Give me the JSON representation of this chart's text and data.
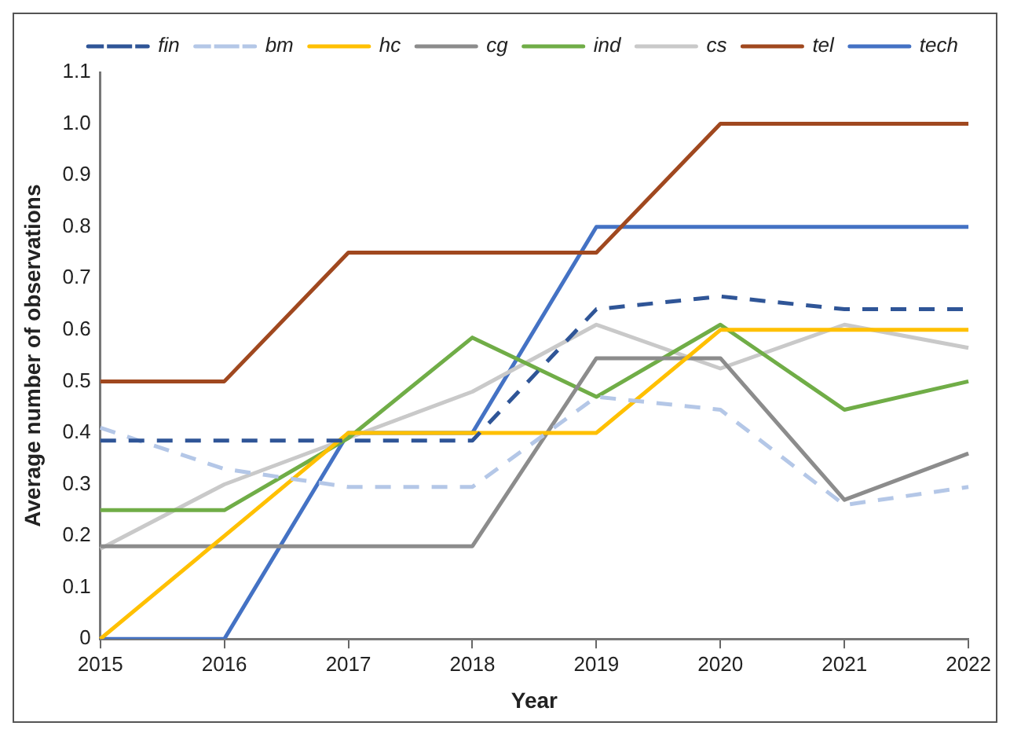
{
  "chart_data": {
    "type": "line",
    "xlabel": "Year",
    "ylabel": "Average number of observations",
    "categories": [
      "2015",
      "2016",
      "2017",
      "2018",
      "2019",
      "2020",
      "2021",
      "2022"
    ],
    "ylim": [
      0,
      1.1
    ],
    "yticks": [
      0,
      0.1,
      0.2,
      0.3,
      0.4,
      0.5,
      0.6,
      0.7,
      0.8,
      0.9,
      {
        "value": 1,
        "label": "1.0"
      },
      1.1
    ],
    "grid": false,
    "legend": "top right",
    "marker": "none",
    "series": [
      {
        "name": "fin",
        "color": "#2f5597",
        "line_style": "dashed",
        "values": [
          0.385,
          0.385,
          0.385,
          0.385,
          0.64,
          0.665,
          0.64,
          0.64
        ]
      },
      {
        "name": "bm",
        "color": "#b4c7e7",
        "line_style": "dashed",
        "values": [
          0.41,
          0.33,
          0.295,
          0.295,
          0.47,
          0.445,
          0.26,
          0.295
        ]
      },
      {
        "name": "hc",
        "color": "#ffc000",
        "line_style": "solid",
        "values": [
          0,
          0.2,
          0.4,
          0.4,
          0.4,
          0.6,
          0.6,
          0.6
        ]
      },
      {
        "name": "cg",
        "color": "#8c8c8c",
        "line_style": "solid",
        "values": [
          0.18,
          0.18,
          0.18,
          0.18,
          0.545,
          0.545,
          0.27,
          0.36
        ]
      },
      {
        "name": "ind",
        "color": "#70ad47",
        "line_style": "solid",
        "values": [
          0.25,
          0.25,
          0.39,
          0.585,
          0.47,
          0.61,
          0.445,
          0.5
        ]
      },
      {
        "name": "cs",
        "color": "#c9c9c9",
        "line_style": "solid",
        "values": [
          0.175,
          0.3,
          0.39,
          0.48,
          0.61,
          0.525,
          0.61,
          0.565
        ]
      },
      {
        "name": "tel",
        "color": "#a0481f",
        "line_style": "solid",
        "values": [
          0.5,
          0.5,
          0.75,
          0.75,
          0.75,
          1.0,
          1.0,
          1.0
        ]
      },
      {
        "name": "tech",
        "color": "#4472c4",
        "line_style": "solid",
        "values": [
          0,
          0,
          0.4,
          0.4,
          0.8,
          0.8,
          0.8,
          0.8
        ]
      }
    ]
  }
}
